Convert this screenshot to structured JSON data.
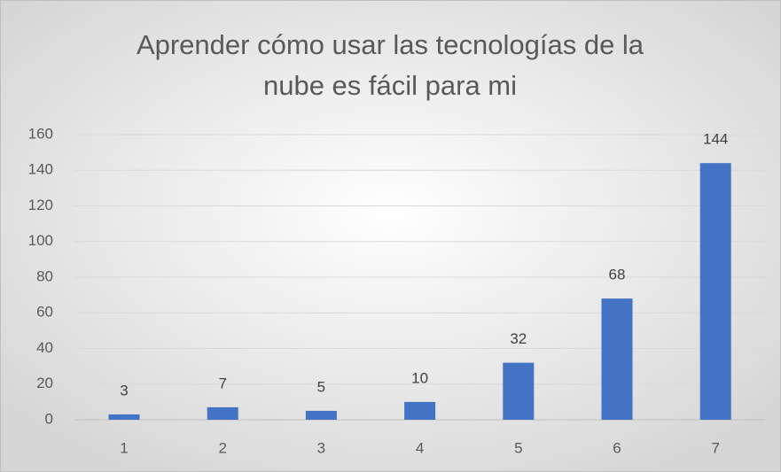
{
  "chart_data": {
    "type": "bar",
    "title": "Aprender cómo usar las tecnologías de la nube es fácil para mi",
    "categories": [
      "1",
      "2",
      "3",
      "4",
      "5",
      "6",
      "7"
    ],
    "values": [
      3,
      7,
      5,
      10,
      32,
      68,
      144
    ],
    "color": "#4472c4",
    "ylim": [
      0,
      160
    ],
    "yticks": [
      0,
      20,
      40,
      60,
      80,
      100,
      120,
      140,
      160
    ],
    "grid": true
  }
}
